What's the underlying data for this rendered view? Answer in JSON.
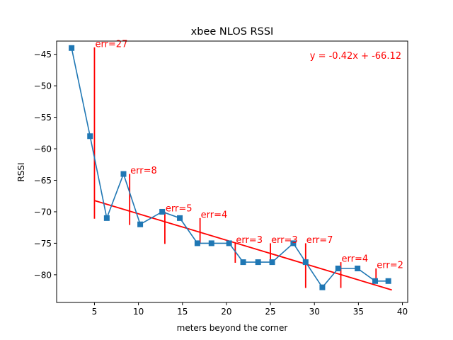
{
  "chart_data": {
    "type": "line",
    "title": "xbee NLOS RSSI",
    "xlabel": "meters beyond the corner",
    "ylabel": "RSSI",
    "xlim": [
      0.7,
      40.6
    ],
    "ylim": [
      -84.4,
      -42.9
    ],
    "xticks": [
      5,
      10,
      15,
      20,
      25,
      30,
      35,
      40
    ],
    "yticks": [
      -80,
      -75,
      -70,
      -65,
      -60,
      -55,
      -50,
      -45
    ],
    "grid": false,
    "series": [
      {
        "color": "#1f77b4",
        "marker": "square",
        "x": [
          2.4,
          4.5,
          6.4,
          8.3,
          10.2,
          12.7,
          14.7,
          16.7,
          18.3,
          20.3,
          21.9,
          23.6,
          25.2,
          27.6,
          29.0,
          30.9,
          32.7,
          34.9,
          36.9,
          38.4
        ],
        "y": [
          -44,
          -58,
          -71,
          -64,
          -72,
          -70,
          -71,
          -75,
          -75,
          -75,
          -78,
          -78,
          -78,
          -75,
          -78,
          -82,
          -79,
          -79,
          -81,
          -81
        ]
      }
    ],
    "fit_line": {
      "color": "#ff0000",
      "slope": -0.42,
      "intercept": -66.12,
      "x_range": [
        5.0,
        38.8
      ],
      "equation_label": "y = -0.42x + -66.12"
    },
    "error_bars": {
      "color": "#ff0000",
      "items": [
        {
          "x": 5.0,
          "y_low": -71.1,
          "y_high": -43.9,
          "label": "err=27"
        },
        {
          "x": 9.0,
          "y_low": -72.1,
          "y_high": -64.0,
          "label": "err=8"
        },
        {
          "x": 13.0,
          "y_low": -75.1,
          "y_high": -70.0,
          "label": "err=5"
        },
        {
          "x": 17.0,
          "y_low": -75.1,
          "y_high": -71.0,
          "label": "err=4"
        },
        {
          "x": 21.0,
          "y_low": -78.1,
          "y_high": -75.0,
          "label": "err=3"
        },
        {
          "x": 25.0,
          "y_low": -78.1,
          "y_high": -75.0,
          "label": "err=3"
        },
        {
          "x": 29.0,
          "y_low": -82.1,
          "y_high": -75.0,
          "label": "err=7"
        },
        {
          "x": 33.0,
          "y_low": -82.1,
          "y_high": -78.0,
          "label": "err=4"
        },
        {
          "x": 37.0,
          "y_low": -81.1,
          "y_high": -79.0,
          "label": "err=2"
        }
      ]
    }
  }
}
